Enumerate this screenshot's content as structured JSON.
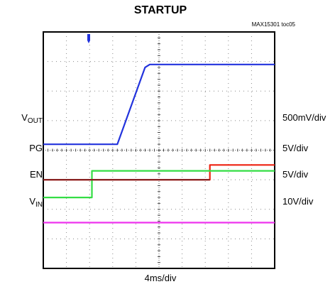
{
  "title": "STARTUP",
  "part_label": "MAX15301 toc05",
  "timebase": "4ms/div",
  "colors": {
    "vout": "#2233dd",
    "pg": "#ee2211",
    "pg_low": "#882222",
    "en": "#33dd44",
    "vin": "#ee33ee",
    "grid": "#000000",
    "trigger": "#2233dd"
  },
  "channels": [
    {
      "name": "V",
      "sub": "OUT",
      "scale": "500mV/div"
    },
    {
      "name": "PG",
      "sub": "",
      "scale": "5V/div"
    },
    {
      "name": "EN",
      "sub": "",
      "scale": "5V/div"
    },
    {
      "name": "V",
      "sub": "IN",
      "scale": "10V/div"
    }
  ],
  "chart_data": {
    "type": "line",
    "x_unit": "divisions (4ms/div)",
    "xlim": [
      0,
      10
    ],
    "ylim": [
      0,
      8
    ],
    "grid": true,
    "series": [
      {
        "name": "VOUT",
        "x": [
          0,
          3.2,
          4.4,
          4.6,
          10
        ],
        "y": [
          4.2,
          4.2,
          6.8,
          6.9,
          6.9
        ]
      },
      {
        "name": "PG",
        "x": [
          0,
          7.2,
          7.2,
          10
        ],
        "y": [
          3.0,
          3.0,
          3.5,
          3.5
        ]
      },
      {
        "name": "EN",
        "x": [
          0,
          2.1,
          2.1,
          10
        ],
        "y": [
          2.4,
          2.4,
          3.3,
          3.3
        ]
      },
      {
        "name": "VIN",
        "x": [
          0,
          10
        ],
        "y": [
          1.55,
          1.55
        ]
      }
    ]
  }
}
